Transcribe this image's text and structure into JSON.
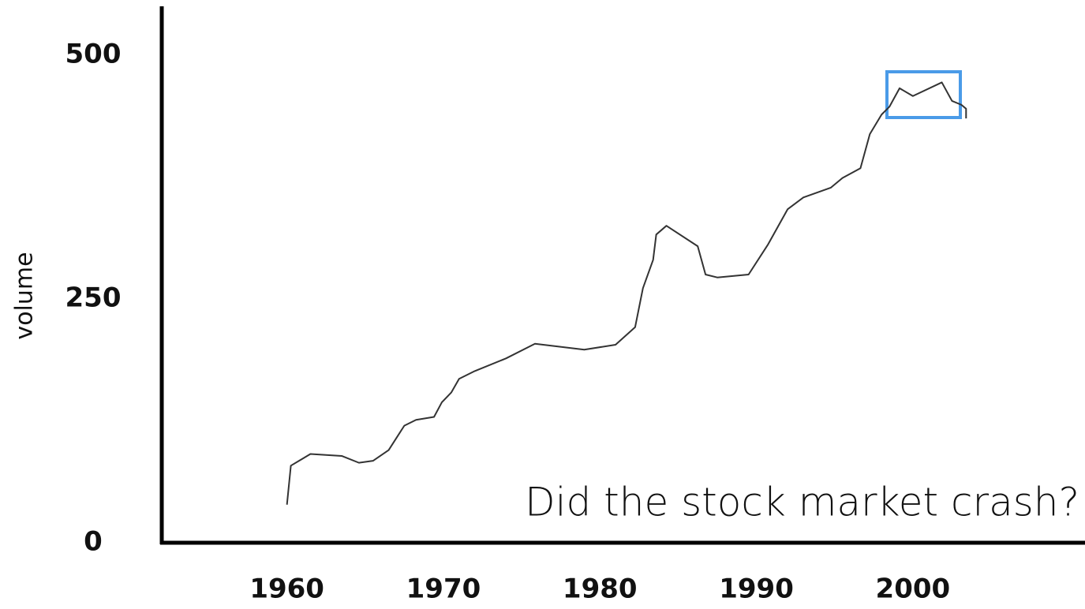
{
  "chart_data": {
    "type": "line",
    "y_label": "volume",
    "annotation": "Did the stock market crash?",
    "x": [
      1960,
      1960.25,
      1961.5,
      1963.5,
      1964.6,
      1965.5,
      1966.5,
      1967.5,
      1968.25,
      1969.4,
      1969.9,
      1970.5,
      1971,
      1972,
      1974,
      1975.85,
      1979,
      1981,
      1982.25,
      1982.75,
      1983.4,
      1983.6,
      1984.25,
      1986.25,
      1986.75,
      1987.5,
      1989.5,
      1990.75,
      1992,
      1993,
      1994.75,
      1995.5,
      1996.65,
      1997.25,
      1998,
      1998.5,
      1999.15,
      2000,
      2001.85,
      2002.5,
      2003.1,
      2003.4,
      2003.4
    ],
    "series": [
      {
        "color": "#333333",
        "values": [
          39,
          79,
          91,
          89,
          82,
          84,
          95,
          120,
          126,
          129,
          144,
          154,
          168,
          176,
          189,
          204,
          198,
          203,
          221,
          261,
          290,
          316,
          325,
          304,
          275,
          272,
          275,
          306,
          342,
          354,
          364,
          374,
          384,
          419,
          439,
          447,
          466,
          458,
          472,
          453,
          449,
          445,
          435
        ]
      }
    ],
    "xlim": [
      1952,
      2011
    ],
    "xticks": [
      1960,
      1970,
      1980,
      1990,
      2000
    ],
    "ylim": [
      0,
      550
    ],
    "yticks": [
      0,
      250,
      500
    ],
    "grid": false
  }
}
